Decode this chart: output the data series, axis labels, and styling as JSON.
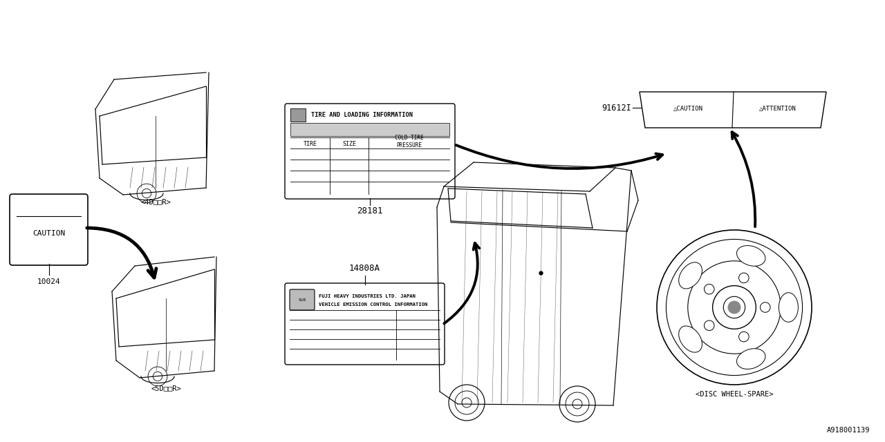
{
  "bg_color": "#ffffff",
  "line_color": "#000000",
  "fig_width": 12.8,
  "fig_height": 6.4,
  "watermark": "A918001139",
  "caution_label": "CAUTION",
  "caution_part": "10024",
  "emission_part": "14808A",
  "emission_line1": "FUJI HEAVY INDUSTRIES LTD. JAPAN",
  "emission_line2": "VEHICLE EMISSION CONTROL INFORMATION",
  "tire_part": "28181",
  "tire_title": "TIRE AND LOADING INFORMATION",
  "tire_col1": "TIRE",
  "tire_col2": "SIZE",
  "tire_col3": "COLD TIRE\nPRESSURE",
  "disc_label": "<DISC WHEEL-SPARE>",
  "disc_part": "91612I",
  "disc_caution": "△CAUTION",
  "disc_attention": "△ATTENTION",
  "door5_label": "<5D□□R>",
  "door4_label": "<4D□□R>"
}
